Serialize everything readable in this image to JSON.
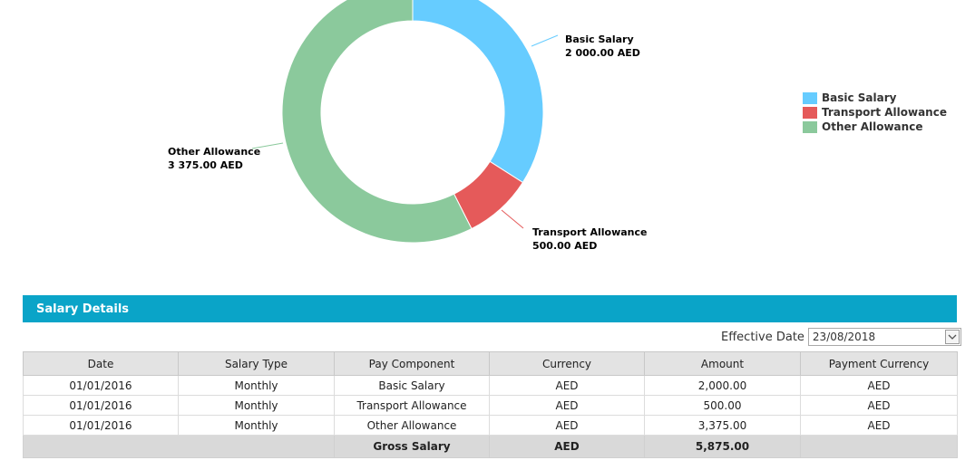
{
  "chart_data": {
    "type": "pie",
    "variant": "donut",
    "slices": [
      {
        "name": "Basic Salary",
        "value": 2000.0,
        "label_value": "2 000.00 AED",
        "color": "#66ccff"
      },
      {
        "name": "Transport Allowance",
        "value": 500.0,
        "label_value": "500.00 AED",
        "color": "#e55a5a"
      },
      {
        "name": "Other Allowance",
        "value": 3375.0,
        "label_value": "3 375.00 AED",
        "color": "#8bc99c"
      }
    ],
    "legend_position": "right"
  },
  "panel": {
    "title": "Salary Details"
  },
  "filter": {
    "label": "Effective Date",
    "value": "23/08/2018"
  },
  "table": {
    "headers": [
      "Date",
      "Salary Type",
      "Pay Component",
      "Currency",
      "Amount",
      "Payment Currency"
    ],
    "rows": [
      [
        "01/01/2016",
        "Monthly",
        "Basic Salary",
        "AED",
        "2,000.00",
        "AED"
      ],
      [
        "01/01/2016",
        "Monthly",
        "Transport Allowance",
        "AED",
        "500.00",
        "AED"
      ],
      [
        "01/01/2016",
        "Monthly",
        "Other Allowance",
        "AED",
        "3,375.00",
        "AED"
      ]
    ],
    "total": {
      "label": "Gross Salary",
      "currency": "AED",
      "amount": "5,875.00"
    }
  }
}
